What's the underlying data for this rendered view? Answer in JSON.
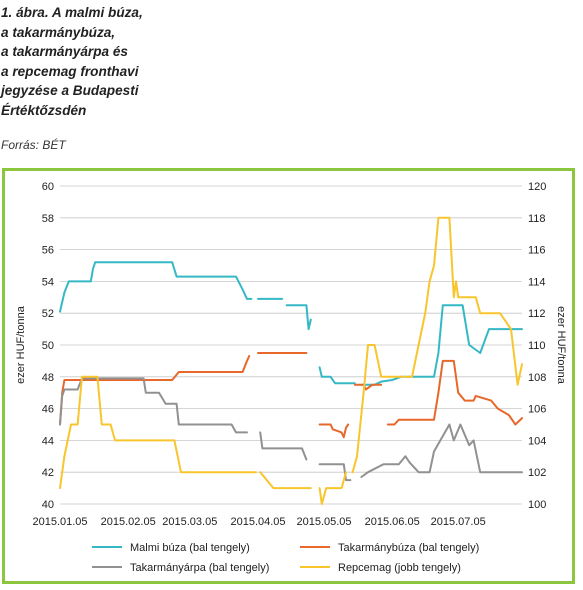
{
  "header": {
    "title_lines": [
      "1. ábra. A malmi búza,",
      "a takarmánybúza,",
      "a takarmányárpa és",
      "a repcemag fronthavi",
      "jegyzése a Budapesti",
      "Értéktőzsdén"
    ],
    "source": "Forrás: BÉT"
  },
  "chart_data": {
    "type": "line",
    "ylabel_left": "ezer HUF/tonna",
    "ylabel_right": "ezer HUF/tonna",
    "ylim_left": [
      40,
      60
    ],
    "ylim_right": [
      100,
      120
    ],
    "yticks_left": [
      "40",
      "42",
      "44",
      "46",
      "48",
      "50",
      "52",
      "54",
      "56",
      "58",
      "60"
    ],
    "yticks_right": [
      "100",
      "102",
      "104",
      "106",
      "108",
      "110",
      "112",
      "114",
      "116",
      "118",
      "120"
    ],
    "xticks": [
      "2015.01.05",
      "2015.02.05",
      "2015.03.05",
      "2015.04.05",
      "2015.05.05",
      "2015.06.05",
      "2015.07.05"
    ],
    "xtick_dates": [
      "2015-01-05",
      "2015-02-05",
      "2015-03-05",
      "2015-04-05",
      "2015-05-05",
      "2015-06-05",
      "2015-07-05"
    ],
    "x_range": [
      "2015-01-05",
      "2015-08-03"
    ],
    "grid": "horizontal",
    "legend_position": "bottom",
    "series": [
      {
        "name": "Malmi búza (bal tengely)",
        "axis": "left",
        "color": "#35b8c5",
        "segments": [
          [
            [
              "2015-01-05",
              52.1
            ],
            [
              "2015-01-07",
              53.3
            ],
            [
              "2015-01-09",
              54.0
            ],
            [
              "2015-01-15",
              54.0
            ],
            [
              "2015-01-19",
              54.0
            ],
            [
              "2015-01-20",
              54.8
            ],
            [
              "2015-01-21",
              55.2
            ],
            [
              "2015-02-25",
              55.2
            ],
            [
              "2015-02-27",
              54.3
            ],
            [
              "2015-03-26",
              54.3
            ],
            [
              "2015-03-29",
              53.5
            ],
            [
              "2015-03-31",
              52.9
            ],
            [
              "2015-04-02",
              52.9
            ]
          ],
          [
            [
              "2015-04-05",
              52.9
            ],
            [
              "2015-04-16",
              52.9
            ]
          ],
          [
            [
              "2015-04-18",
              52.5
            ],
            [
              "2015-04-27",
              52.5
            ],
            [
              "2015-04-28",
              51.0
            ],
            [
              "2015-04-29",
              51.6
            ]
          ],
          [
            [
              "2015-05-03",
              48.6
            ],
            [
              "2015-05-04",
              48.0
            ],
            [
              "2015-05-08",
              48.0
            ],
            [
              "2015-05-10",
              47.6
            ],
            [
              "2015-05-19",
              47.6
            ]
          ],
          [
            [
              "2015-05-22",
              47.5
            ],
            [
              "2015-05-28",
              47.5
            ],
            [
              "2015-05-31",
              47.7
            ],
            [
              "2015-06-05",
              47.8
            ],
            [
              "2015-06-09",
              48.0
            ],
            [
              "2015-06-24",
              48.0
            ],
            [
              "2015-06-26",
              49.5
            ],
            [
              "2015-06-28",
              52.5
            ],
            [
              "2015-07-07",
              52.5
            ],
            [
              "2015-07-10",
              50.0
            ],
            [
              "2015-07-15",
              49.5
            ],
            [
              "2015-07-19",
              51.0
            ],
            [
              "2015-08-03",
              51.0
            ]
          ]
        ]
      },
      {
        "name": "Takarmánybúza (bal tengely)",
        "axis": "left",
        "color": "#e8672a",
        "segments": [
          [
            [
              "2015-01-05",
              45.0
            ],
            [
              "2015-01-06",
              47.0
            ],
            [
              "2015-01-07",
              47.8
            ],
            [
              "2015-02-25",
              47.8
            ],
            [
              "2015-02-28",
              48.3
            ],
            [
              "2015-03-29",
              48.3
            ],
            [
              "2015-03-31",
              49.0
            ],
            [
              "2015-04-01",
              49.3
            ]
          ],
          [
            [
              "2015-04-05",
              49.5
            ],
            [
              "2015-04-27",
              49.5
            ]
          ],
          [
            [
              "2015-05-03",
              45.0
            ],
            [
              "2015-05-08",
              45.0
            ],
            [
              "2015-05-09",
              44.7
            ],
            [
              "2015-05-13",
              44.5
            ],
            [
              "2015-05-14",
              44.2
            ],
            [
              "2015-05-15",
              44.8
            ],
            [
              "2015-05-16",
              45.0
            ]
          ],
          [
            [
              "2015-05-19",
              47.5
            ],
            [
              "2015-05-23",
              47.5
            ],
            [
              "2015-05-24",
              47.2
            ],
            [
              "2015-05-27",
              47.5
            ],
            [
              "2015-05-31",
              47.5
            ]
          ],
          [
            [
              "2015-06-03",
              45.0
            ],
            [
              "2015-06-06",
              45.0
            ],
            [
              "2015-06-08",
              45.3
            ],
            [
              "2015-06-24",
              45.3
            ],
            [
              "2015-06-26",
              47.0
            ],
            [
              "2015-06-28",
              49.0
            ],
            [
              "2015-07-03",
              49.0
            ],
            [
              "2015-07-05",
              47.0
            ],
            [
              "2015-07-08",
              46.5
            ],
            [
              "2015-07-12",
              46.5
            ],
            [
              "2015-07-13",
              46.8
            ],
            [
              "2015-07-20",
              46.5
            ],
            [
              "2015-07-23",
              46.0
            ],
            [
              "2015-07-28",
              45.6
            ],
            [
              "2015-07-31",
              45.0
            ],
            [
              "2015-08-03",
              45.4
            ]
          ]
        ]
      },
      {
        "name": "Takarmányárpa (bal tengely)",
        "axis": "left",
        "color": "#919191",
        "segments": [
          [
            [
              "2015-01-05",
              45.0
            ],
            [
              "2015-01-06",
              46.8
            ],
            [
              "2015-01-07",
              47.2
            ],
            [
              "2015-01-13",
              47.2
            ],
            [
              "2015-01-15",
              47.9
            ],
            [
              "2015-02-12",
              47.9
            ],
            [
              "2015-02-13",
              47.0
            ],
            [
              "2015-02-19",
              47.0
            ],
            [
              "2015-02-22",
              46.3
            ],
            [
              "2015-02-27",
              46.3
            ],
            [
              "2015-02-28",
              45.0
            ],
            [
              "2015-03-24",
              45.0
            ],
            [
              "2015-03-26",
              44.5
            ],
            [
              "2015-03-31",
              44.5
            ]
          ],
          [
            [
              "2015-04-06",
              44.5
            ],
            [
              "2015-04-07",
              43.5
            ],
            [
              "2015-04-25",
              43.5
            ],
            [
              "2015-04-27",
              42.8
            ]
          ],
          [
            [
              "2015-05-03",
              42.5
            ],
            [
              "2015-05-14",
              42.5
            ],
            [
              "2015-05-15",
              41.5
            ],
            [
              "2015-05-17",
              41.5
            ]
          ],
          [
            [
              "2015-05-22",
              41.7
            ],
            [
              "2015-05-25",
              42.0
            ],
            [
              "2015-06-01",
              42.5
            ],
            [
              "2015-06-08",
              42.5
            ],
            [
              "2015-06-11",
              43.0
            ],
            [
              "2015-06-13",
              42.6
            ],
            [
              "2015-06-17",
              42.0
            ],
            [
              "2015-06-22",
              42.0
            ],
            [
              "2015-06-24",
              43.3
            ],
            [
              "2015-07-01",
              45.0
            ],
            [
              "2015-07-03",
              44.0
            ],
            [
              "2015-07-06",
              45.0
            ],
            [
              "2015-07-10",
              43.7
            ],
            [
              "2015-07-12",
              44.0
            ],
            [
              "2015-07-15",
              42.0
            ],
            [
              "2015-08-03",
              42.0
            ]
          ]
        ]
      },
      {
        "name": "Repcemag (jobb tengely)",
        "axis": "right",
        "color": "#f8c52d",
        "segments": [
          [
            [
              "2015-01-05",
              101.0
            ],
            [
              "2015-01-07",
              103.0
            ],
            [
              "2015-01-10",
              105.0
            ],
            [
              "2015-01-13",
              105.0
            ],
            [
              "2015-01-15",
              108.0
            ],
            [
              "2015-01-22",
              108.0
            ],
            [
              "2015-01-24",
              105.0
            ],
            [
              "2015-01-28",
              105.0
            ],
            [
              "2015-01-30",
              104.0
            ],
            [
              "2015-02-26",
              104.0
            ],
            [
              "2015-03-01",
              102.0
            ],
            [
              "2015-04-04",
              102.0
            ]
          ],
          [
            [
              "2015-04-06",
              102.0
            ],
            [
              "2015-04-12",
              101.0
            ],
            [
              "2015-04-29",
              101.0
            ]
          ],
          [
            [
              "2015-05-03",
              101.0
            ],
            [
              "2015-05-04",
              100.0
            ],
            [
              "2015-05-06",
              101.0
            ],
            [
              "2015-05-13",
              101.0
            ],
            [
              "2015-05-15",
              102.0
            ]
          ],
          [
            [
              "2015-05-18",
              102.0
            ],
            [
              "2015-05-20",
              103.0
            ],
            [
              "2015-05-23",
              107.0
            ],
            [
              "2015-05-25",
              110.0
            ],
            [
              "2015-05-28",
              110.0
            ],
            [
              "2015-05-31",
              108.0
            ],
            [
              "2015-06-14",
              108.0
            ],
            [
              "2015-06-17",
              110.0
            ],
            [
              "2015-06-20",
              112.0
            ],
            [
              "2015-06-22",
              114.0
            ],
            [
              "2015-06-24",
              115.0
            ],
            [
              "2015-06-26",
              118.0
            ],
            [
              "2015-07-01",
              118.0
            ],
            [
              "2015-07-03",
              113.0
            ],
            [
              "2015-07-04",
              114.0
            ],
            [
              "2015-07-05",
              113.0
            ],
            [
              "2015-07-13",
              113.0
            ],
            [
              "2015-07-15",
              112.0
            ],
            [
              "2015-07-24",
              112.0
            ],
            [
              "2015-07-29",
              111.0
            ],
            [
              "2015-08-01",
              107.5
            ],
            [
              "2015-08-03",
              108.8
            ]
          ]
        ]
      }
    ]
  }
}
